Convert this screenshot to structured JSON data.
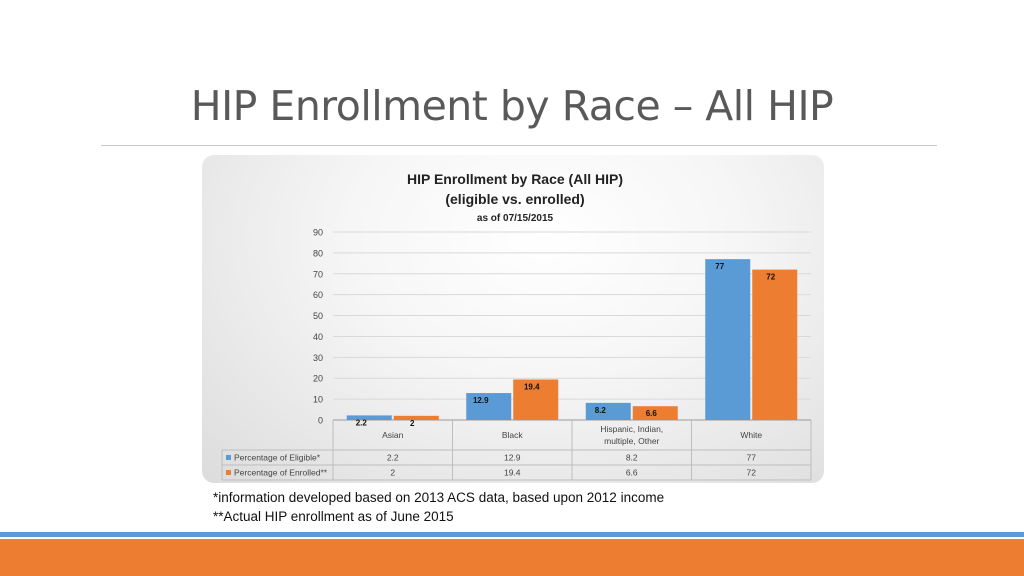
{
  "slide": {
    "title": "HIP Enrollment by Race – All HIP",
    "notes": [
      "*information developed based on 2013 ACS data, based upon 2012 income",
      "**Actual HIP enrollment as of June 2015"
    ]
  },
  "colors": {
    "eligible": "#5b9bd5",
    "enrolled": "#ed7d31",
    "accent_band_blue": "#5b9bd5",
    "accent_band_orange": "#ed7d31"
  },
  "chart_data": {
    "type": "bar",
    "title": "HIP Enrollment by Race (All HIP)",
    "subtitle": "(eligible vs. enrolled)",
    "subtitle2": "as of 07/15/2015",
    "categories": [
      "Asian",
      "Black",
      "Hispanic, Indian, multiple, Other",
      "White"
    ],
    "series": [
      {
        "name": "Percentage of Eligible*",
        "values": [
          2.2,
          12.9,
          8.2,
          77
        ],
        "table_values": [
          "2.2",
          "12.9",
          "8.2",
          "77"
        ],
        "color": "#5b9bd5"
      },
      {
        "name": "Percentage of Enrolled**",
        "values": [
          2,
          19.4,
          6.6,
          72
        ],
        "table_values": [
          "2",
          "19.4",
          "6.6",
          "72"
        ],
        "color": "#ed7d31"
      }
    ],
    "y_ticks": [
      0,
      10,
      20,
      30,
      40,
      50,
      60,
      70,
      80,
      90
    ],
    "ylim": [
      0,
      90
    ],
    "grid": true,
    "legend": "data table below chart"
  }
}
